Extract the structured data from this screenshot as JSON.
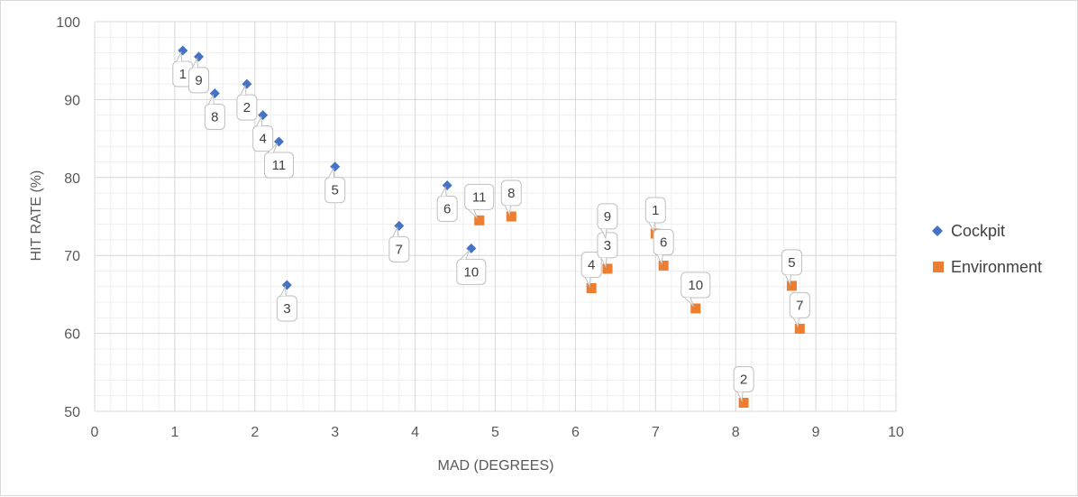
{
  "chart_data": {
    "type": "scatter",
    "title": "",
    "xlabel": "MAD (DEGREES)",
    "ylabel": "HIT RATE (%)",
    "xlim": [
      0,
      10
    ],
    "ylim": [
      50,
      100
    ],
    "x_ticks": [
      "0",
      "1",
      "2",
      "3",
      "4",
      "5",
      "6",
      "7",
      "8",
      "9",
      "10"
    ],
    "y_ticks": [
      "50",
      "60",
      "70",
      "80",
      "90",
      "100"
    ],
    "grid": true,
    "minor_grid": true,
    "legend_position": "right",
    "series": [
      {
        "name": "Cockpit",
        "marker": "diamond",
        "color": "#4472c4",
        "points": [
          {
            "label": "1",
            "x": 1.1,
            "y": 96.3
          },
          {
            "label": "9",
            "x": 1.3,
            "y": 95.5
          },
          {
            "label": "8",
            "x": 1.5,
            "y": 90.8
          },
          {
            "label": "2",
            "x": 1.9,
            "y": 92.0
          },
          {
            "label": "4",
            "x": 2.1,
            "y": 88.0
          },
          {
            "label": "11",
            "x": 2.3,
            "y": 84.6
          },
          {
            "label": "3",
            "x": 2.4,
            "y": 66.2
          },
          {
            "label": "5",
            "x": 3.0,
            "y": 81.4
          },
          {
            "label": "7",
            "x": 3.8,
            "y": 73.8
          },
          {
            "label": "6",
            "x": 4.4,
            "y": 79.0
          },
          {
            "label": "10",
            "x": 4.7,
            "y": 70.9
          }
        ]
      },
      {
        "name": "Environment",
        "marker": "square",
        "color": "#ed7d31",
        "points": [
          {
            "label": "11",
            "x": 4.8,
            "y": 74.5
          },
          {
            "label": "8",
            "x": 5.2,
            "y": 75.0
          },
          {
            "label": "4",
            "x": 6.2,
            "y": 65.8
          },
          {
            "label": "3",
            "x": 6.4,
            "y": 68.3
          },
          {
            "label": "9",
            "x": 6.4,
            "y": 72.0
          },
          {
            "label": "1",
            "x": 7.0,
            "y": 72.8
          },
          {
            "label": "6",
            "x": 7.1,
            "y": 68.7
          },
          {
            "label": "10",
            "x": 7.5,
            "y": 63.2
          },
          {
            "label": "5",
            "x": 8.7,
            "y": 66.1
          },
          {
            "label": "7",
            "x": 8.8,
            "y": 60.6
          },
          {
            "label": "2",
            "x": 8.1,
            "y": 51.1
          }
        ]
      }
    ]
  }
}
